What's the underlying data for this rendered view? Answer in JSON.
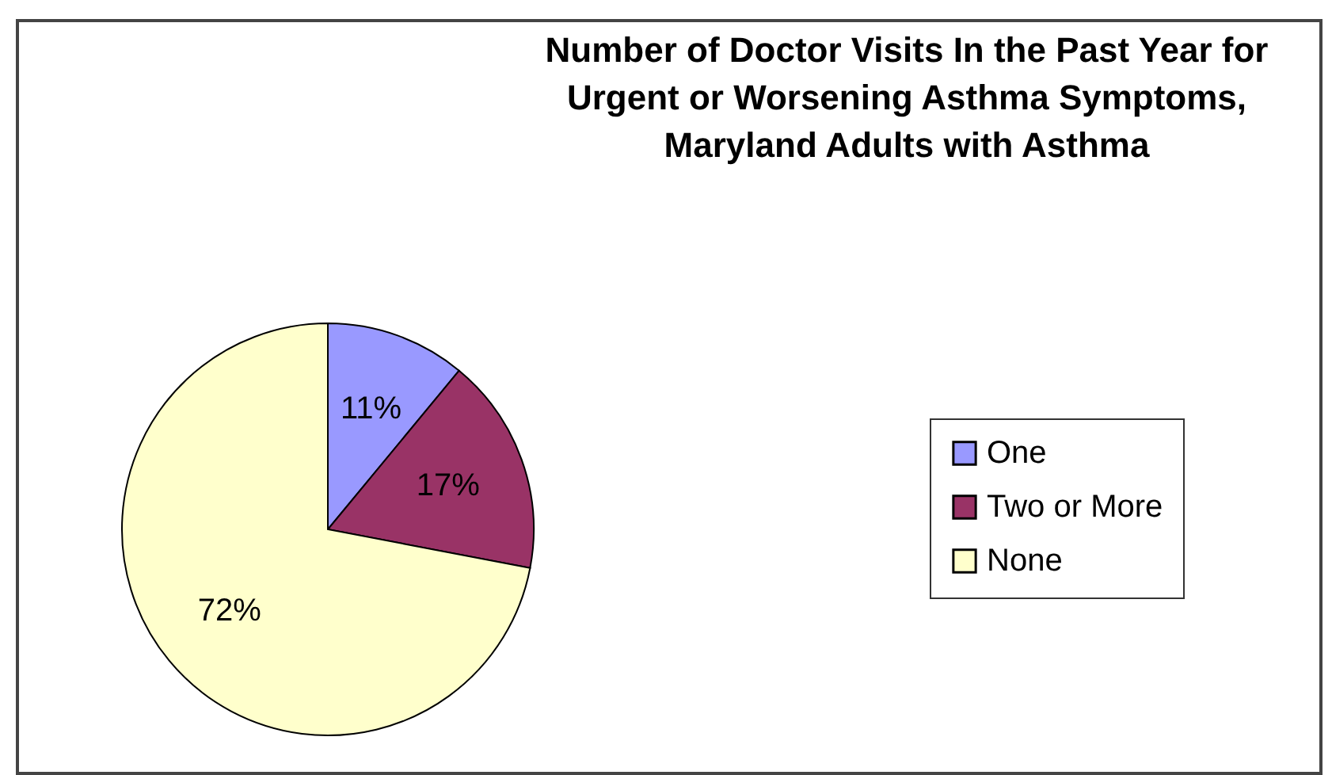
{
  "chart_data": {
    "type": "pie",
    "title": "Number of Doctor Visits In the Past Year for Urgent or Worsening Asthma Symptoms, Maryland Adults with Asthma",
    "categories": [
      "One",
      "Two or More",
      "None"
    ],
    "values": [
      11,
      17,
      72
    ],
    "colors": [
      "#9999ff",
      "#993366",
      "#ffffcc"
    ],
    "value_labels": [
      "11%",
      "17%",
      "72%"
    ],
    "legend": "right"
  }
}
